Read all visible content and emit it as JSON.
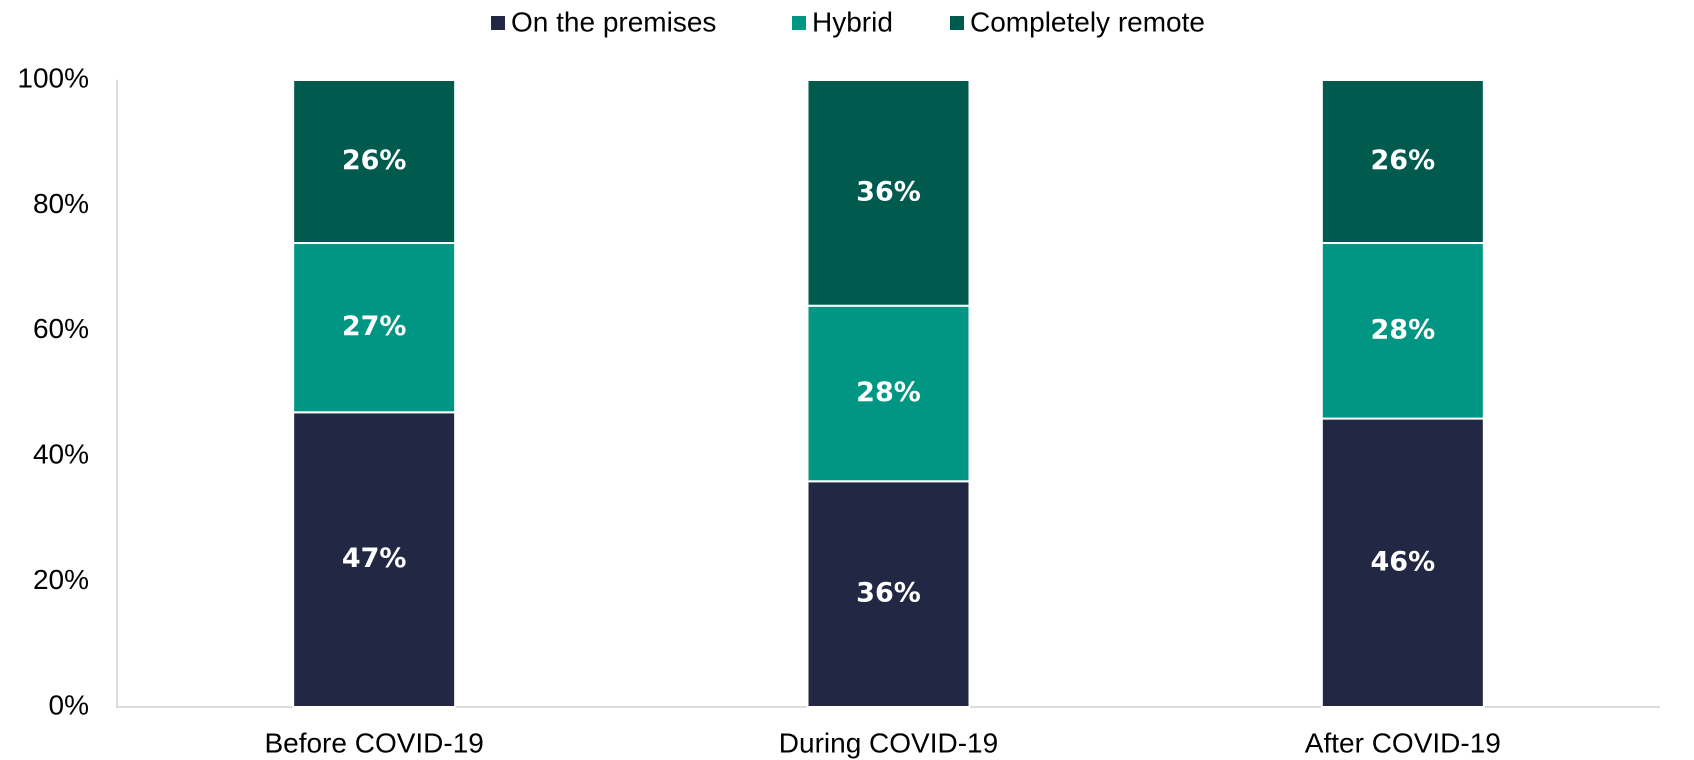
{
  "chart_data": {
    "type": "stacked_bar",
    "categories": [
      "Before COVID-19",
      "During COVID-19",
      "After COVID-19"
    ],
    "series": [
      {
        "name": "On the premises",
        "color": "#222843",
        "values": [
          47,
          36,
          46
        ],
        "value_labels": [
          "47%",
          "36%",
          "46%"
        ]
      },
      {
        "name": "Hybrid",
        "color": "#009683",
        "values": [
          27,
          28,
          28
        ],
        "value_labels": [
          "27%",
          "28%",
          "28%"
        ]
      },
      {
        "name": "Completely remote",
        "color": "#005a4e",
        "values": [
          26,
          36,
          26
        ],
        "value_labels": [
          "26%",
          "36%",
          "26%"
        ]
      }
    ],
    "ylim": [
      0,
      100
    ],
    "yticks": [
      {
        "value": 0,
        "label": "0%"
      },
      {
        "value": 20,
        "label": "20%"
      },
      {
        "value": 40,
        "label": "40%"
      },
      {
        "value": 60,
        "label": "60%"
      },
      {
        "value": 80,
        "label": "80%"
      },
      {
        "value": 100,
        "label": "100%"
      }
    ],
    "legend": "top"
  }
}
